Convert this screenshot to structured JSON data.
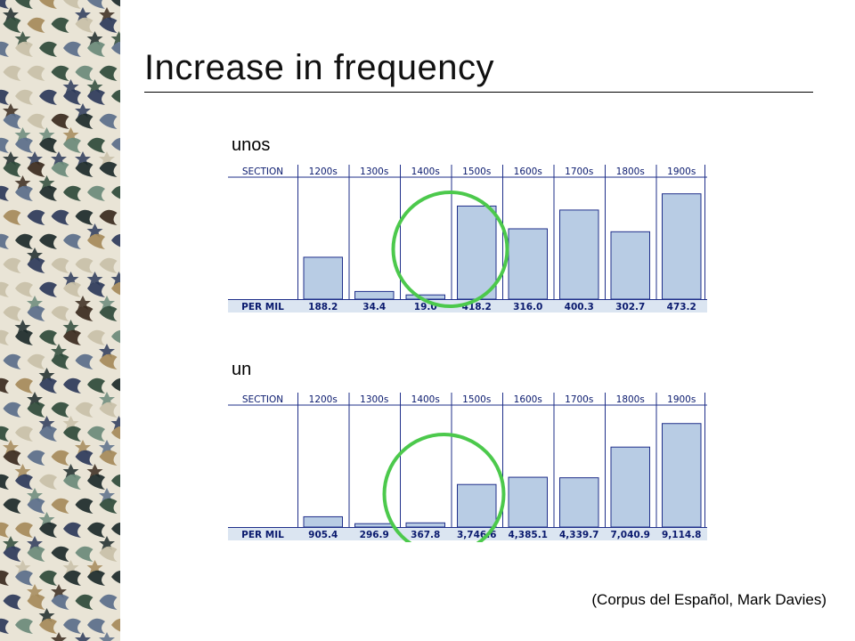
{
  "slide": {
    "title": "Increase in frequency",
    "credit": "(Corpus del Español, Mark Davies)"
  },
  "colors": {
    "bar_fill": "#b8cce4",
    "bar_stroke": "#1f2f8a",
    "header_text": "#0a1a6e",
    "row_fill": "#dbe5f1",
    "circle": "#4cc94c"
  },
  "chart_data": [
    {
      "type": "bar",
      "title": "unos",
      "header_label": "SECTION",
      "footer_label": "PER MIL",
      "categories": [
        "1200s",
        "1300s",
        "1400s",
        "1500s",
        "1600s",
        "1700s",
        "1800s",
        "1900s"
      ],
      "values": [
        188.2,
        34.4,
        19.0,
        418.2,
        316.0,
        400.3,
        302.7,
        473.2
      ],
      "value_labels": [
        "188.2",
        "34.4",
        "19.0",
        "418.2",
        "316.0",
        "400.3",
        "302.7",
        "473.2"
      ],
      "ymax": 500,
      "highlight": "1500s"
    },
    {
      "type": "bar",
      "title": "un",
      "header_label": "SECTION",
      "footer_label": "PER MIL",
      "categories": [
        "1200s",
        "1300s",
        "1400s",
        "1500s",
        "1600s",
        "1700s",
        "1800s",
        "1900s"
      ],
      "values": [
        905.4,
        296.9,
        367.8,
        3746.6,
        4385.1,
        4339.7,
        7040.9,
        9114.8
      ],
      "value_labels": [
        "905.4",
        "296.9",
        "367.8",
        "3,746.6",
        "4,385.1",
        "4,339.7",
        "7,040.9",
        "9,114.8"
      ],
      "ymax": 9800,
      "highlight": "1500s"
    }
  ]
}
